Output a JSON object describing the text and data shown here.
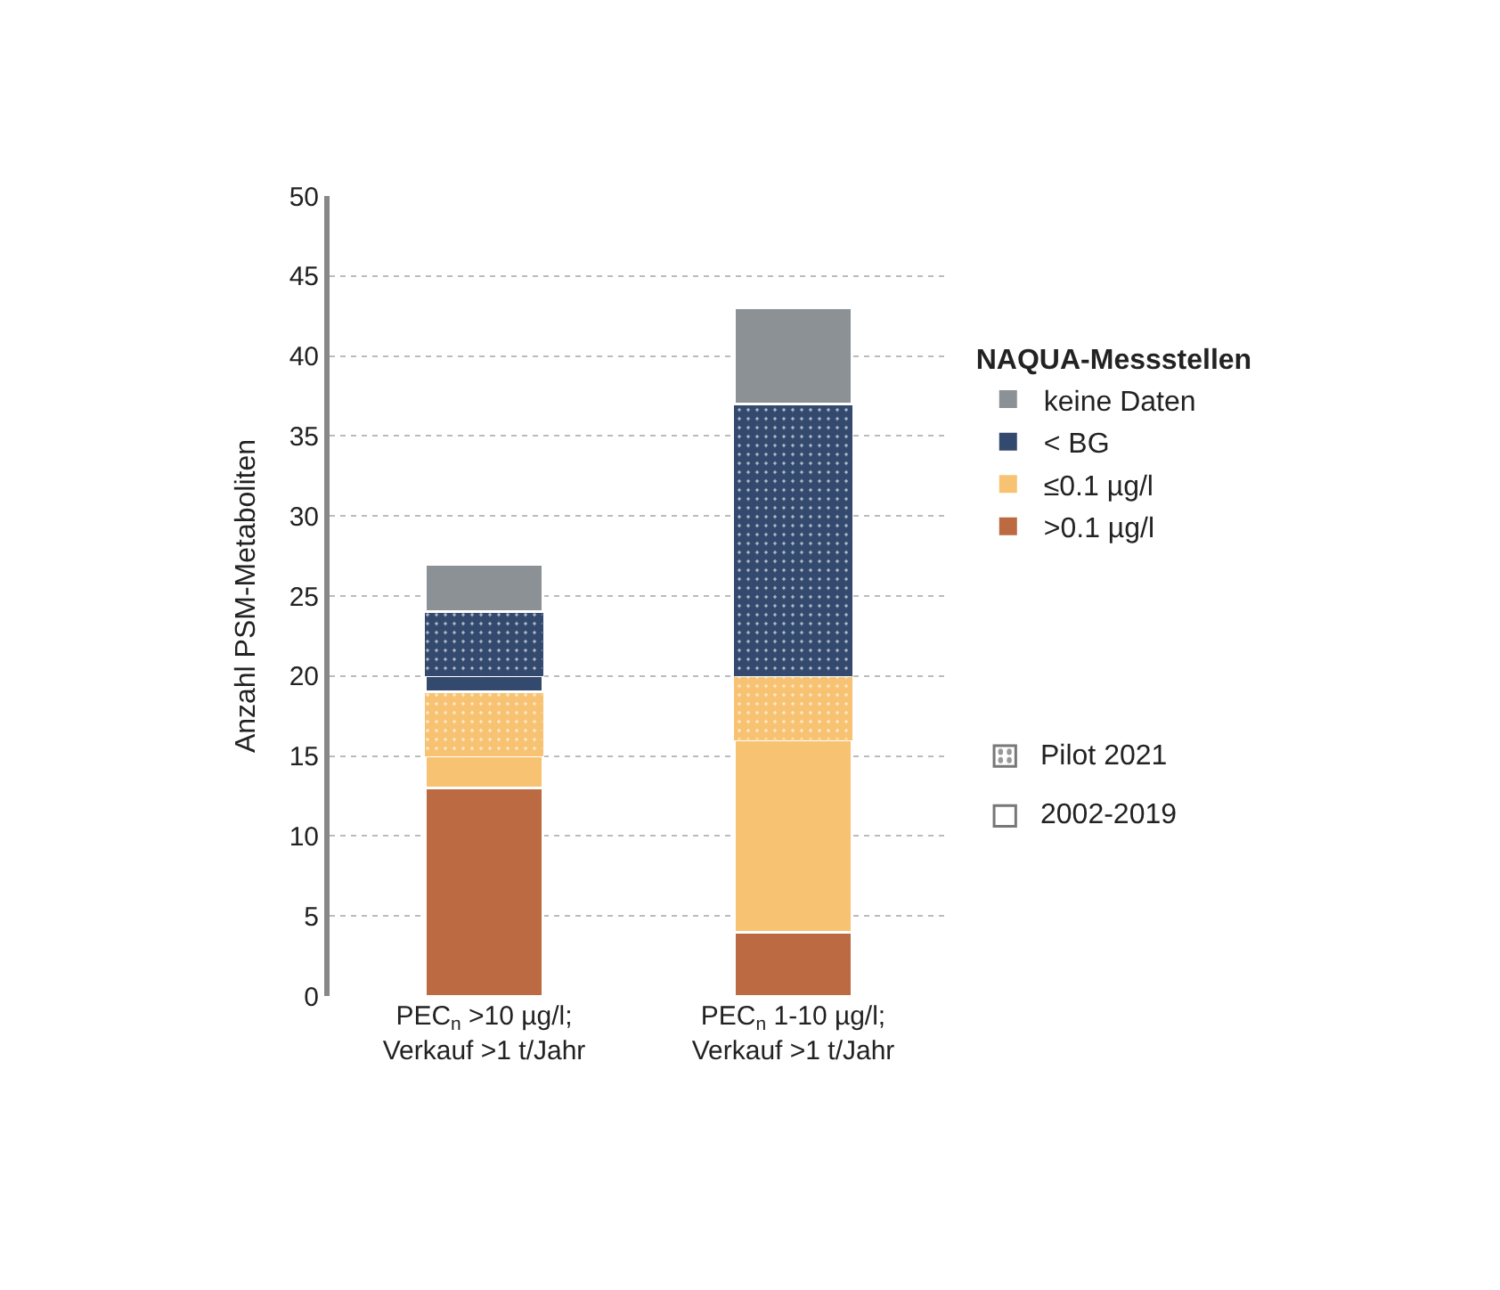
{
  "chart_data": {
    "type": "bar",
    "stacked": true,
    "ylabel": "Anzahl PSM-Metaboliten",
    "legend_title": "NAQUA-Messstellen",
    "categories": [
      "PEC$_{n}$ >10 µg/l;\nVerkauf >1 t/Jahr",
      "PEC$_{n}$ 1-10 µg/l;\nVerkauf >1 t/Jahr"
    ],
    "series": [
      {
        "name": ">0.1 µg/l",
        "color": "#bb6a42",
        "values": [
          13,
          4
        ]
      },
      {
        "name": "≤0.1 µg/l",
        "color": "#f7c372",
        "values": [
          2,
          12
        ]
      },
      {
        "color": "#f7c372",
        "values": [
          4,
          4
        ]
      },
      {
        "name": "< BG",
        "color": "#34496e",
        "values": [
          1,
          0
        ]
      },
      {
        "color": "#34496e",
        "values": [
          4,
          17
        ]
      },
      {
        "name": "keine Daten",
        "color": "#8c9196",
        "values": [
          3,
          6
        ]
      }
    ],
    "annotations": [
      "Pilot 2021",
      "2002-2019"
    ],
    "ylim": [
      0,
      50
    ],
    "yticks": [
      0,
      5,
      10,
      15,
      20,
      25,
      30,
      35,
      40,
      45,
      50
    ],
    "grid": "y",
    "legend": "right"
  }
}
